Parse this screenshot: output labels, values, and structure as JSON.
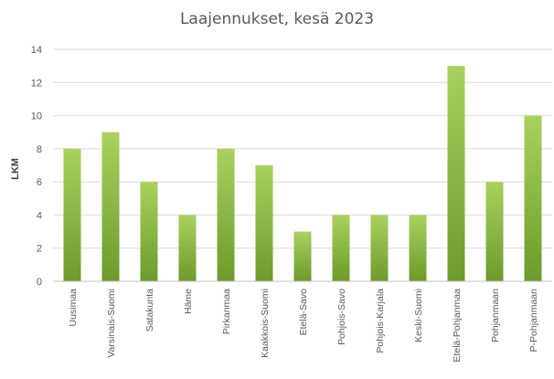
{
  "chart_data": {
    "type": "bar",
    "title": "Laajennukset, kesä 2023",
    "xlabel": "",
    "ylabel": "LKM",
    "ylim": [
      0,
      14
    ],
    "yticks": [
      0,
      2,
      4,
      6,
      8,
      10,
      12,
      14
    ],
    "grid": true,
    "legend": "none",
    "categories": [
      "Uusimaa",
      "Varsinais-Suomi",
      "Satakunta",
      "Häme",
      "Pirkanmaa",
      "Kaakkois-Suomi",
      "Etelä-Savo",
      "Pohjois-Savo",
      "Pohjois-Karjala",
      "Keski-Suomi",
      "Etelä-Pohjanmaa",
      "Pohjanmaan",
      "P-Pohjanmaan"
    ],
    "values": [
      8,
      9,
      6,
      4,
      8,
      7,
      3,
      4,
      4,
      4,
      13,
      6,
      10
    ],
    "colors": {
      "bar_light": "#a9d15e",
      "bar_dark": "#6d9a2c",
      "grid": "#d9d9d9",
      "axis": "#bfbfbf",
      "text": "#595959"
    }
  }
}
